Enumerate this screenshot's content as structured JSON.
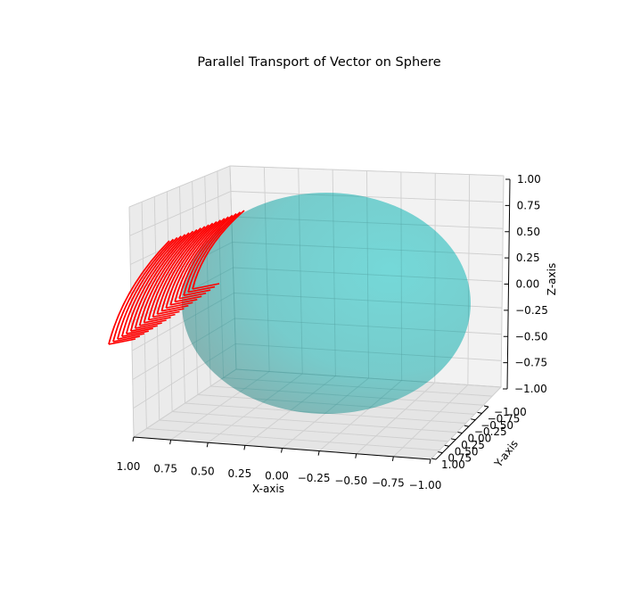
{
  "chart_data": {
    "type": "3d-surface-quiver",
    "title": "Parallel Transport of Vector on Sphere",
    "xlabel": "X-axis",
    "ylabel": "Y-axis",
    "zlabel": "Z-axis",
    "xlim": [
      -1,
      1
    ],
    "ylim": [
      -1,
      1
    ],
    "zlim": [
      -1,
      1
    ],
    "x_ticks": [
      "1.00",
      "0.75",
      "0.50",
      "0.25",
      "0.00",
      "−0.25",
      "−0.50",
      "−0.75",
      "−1.00"
    ],
    "y_ticks": [
      "−1.00",
      "−0.75",
      "−0.50",
      "−0.25",
      "0.00",
      "0.25",
      "0.50",
      "0.75",
      "1.00"
    ],
    "z_ticks": [
      "1.00",
      "0.75",
      "0.50",
      "0.25",
      "0.00",
      "−0.25",
      "−0.50",
      "−0.75",
      "−1.00"
    ],
    "grid": true,
    "surface": {
      "shape": "unit sphere",
      "color": "#5fcfcf",
      "alpha": 0.8
    },
    "vectors": {
      "color": "#ff0000",
      "count": 20
    }
  }
}
